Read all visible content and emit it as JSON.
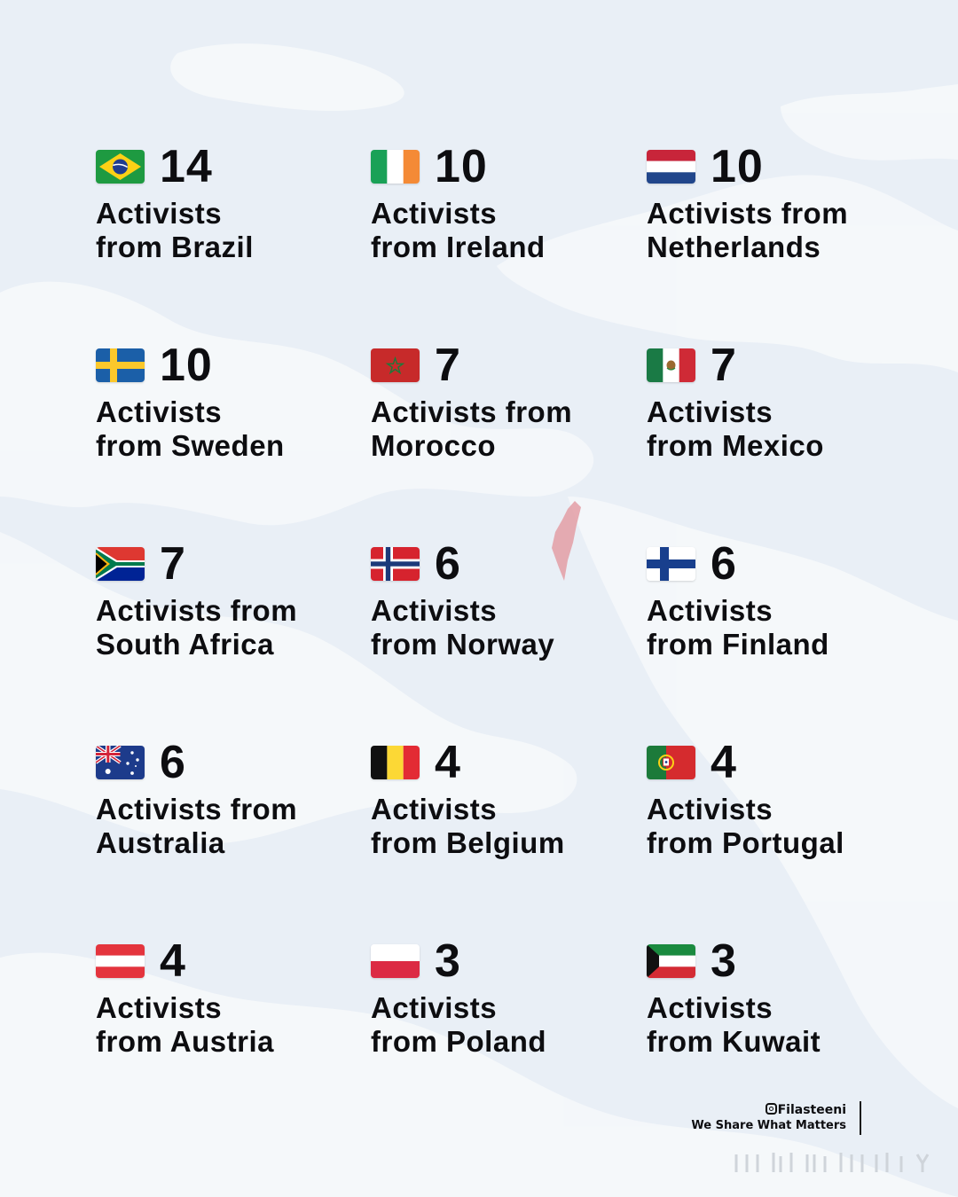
{
  "colors": {
    "background": "#e9eff6",
    "text": "#0d0d10",
    "map_land": "#f6f8fb",
    "highlight_land": "#e39ea5"
  },
  "cards": [
    {
      "country": "Brazil",
      "flag_icon": "brazil-flag-icon",
      "count": "14",
      "line1": "Activists",
      "line2": "from Brazil"
    },
    {
      "country": "Ireland",
      "flag_icon": "ireland-flag-icon",
      "count": "10",
      "line1": "Activists",
      "line2": "from Ireland"
    },
    {
      "country": "Netherlands",
      "flag_icon": "netherlands-flag-icon",
      "count": "10",
      "line1": "Activists from",
      "line2": "Netherlands"
    },
    {
      "country": "Sweden",
      "flag_icon": "sweden-flag-icon",
      "count": "10",
      "line1": "Activists",
      "line2": "from Sweden"
    },
    {
      "country": "Morocco",
      "flag_icon": "morocco-flag-icon",
      "count": "7",
      "line1": "Activists from",
      "line2": "Morocco"
    },
    {
      "country": "Mexico",
      "flag_icon": "mexico-flag-icon",
      "count": "7",
      "line1": "Activists",
      "line2": "from Mexico"
    },
    {
      "country": "South Africa",
      "flag_icon": "south-africa-flag-icon",
      "count": "7",
      "line1": "Activists from",
      "line2": "South Africa"
    },
    {
      "country": "Norway",
      "flag_icon": "norway-flag-icon",
      "count": "6",
      "line1": "Activists",
      "line2": "from Norway"
    },
    {
      "country": "Finland",
      "flag_icon": "finland-flag-icon",
      "count": "6",
      "line1": "Activists",
      "line2": "from Finland"
    },
    {
      "country": "Australia",
      "flag_icon": "australia-flag-icon",
      "count": "6",
      "line1": "Activists from",
      "line2": "Australia"
    },
    {
      "country": "Belgium",
      "flag_icon": "belgium-flag-icon",
      "count": "4",
      "line1": "Activists",
      "line2": "from Belgium"
    },
    {
      "country": "Portugal",
      "flag_icon": "portugal-flag-icon",
      "count": "4",
      "line1": "Activists",
      "line2": "from Portugal"
    },
    {
      "country": "Austria",
      "flag_icon": "austria-flag-icon",
      "count": "4",
      "line1": "Activists",
      "line2": "from Austria"
    },
    {
      "country": "Poland",
      "flag_icon": "poland-flag-icon",
      "count": "3",
      "line1": "Activists",
      "line2": "from Poland"
    },
    {
      "country": "Kuwait",
      "flag_icon": "kuwait-flag-icon",
      "count": "3",
      "line1": "Activists",
      "line2": "from Kuwait"
    }
  ],
  "brand": {
    "handle": "Filasteeni",
    "tagline": "We Share What Matters",
    "icon": "instagram-icon"
  }
}
